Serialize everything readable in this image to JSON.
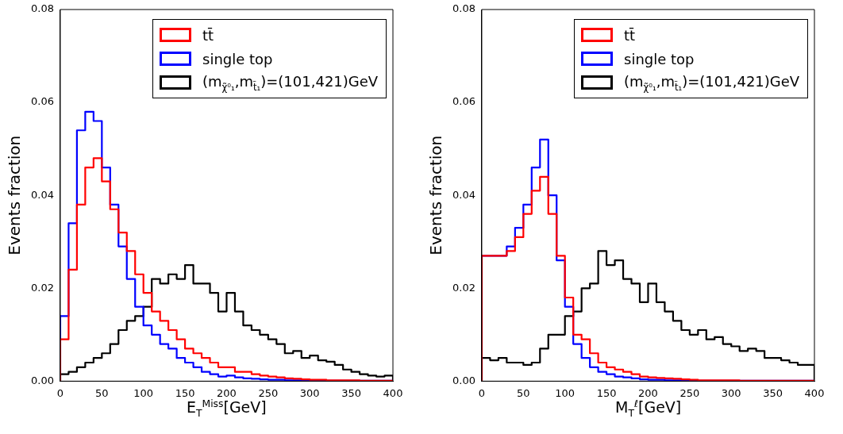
{
  "chart_data": [
    {
      "type": "histogram",
      "xlabel": "E$_{T}$$^{Miss}$[GeV]",
      "ylabel": "Events fraction",
      "bins": [
        0,
        10,
        20,
        30,
        40,
        50,
        60,
        70,
        80,
        90,
        100,
        110,
        120,
        130,
        140,
        150,
        160,
        170,
        180,
        190,
        200,
        210,
        220,
        230,
        240,
        250,
        260,
        270,
        280,
        290,
        300,
        310,
        320,
        330,
        340,
        350,
        360,
        370,
        380,
        390,
        400
      ],
      "series": [
        {
          "name": "tt̄",
          "color": "#ff0000",
          "values": [
            0.009,
            0.024,
            0.038,
            0.046,
            0.048,
            0.043,
            0.037,
            0.032,
            0.028,
            0.023,
            0.019,
            0.015,
            0.013,
            0.011,
            0.009,
            0.007,
            0.006,
            0.005,
            0.004,
            0.003,
            0.003,
            0.002,
            0.002,
            0.0015,
            0.0012,
            0.001,
            0.0008,
            0.0006,
            0.0005,
            0.0004,
            0.0003,
            0.0003,
            0.0002,
            0.0002,
            0.0002,
            0.0002,
            0.0001,
            0.0001,
            0.0001,
            0.0001
          ]
        },
        {
          "name": "single top",
          "color": "#0000ff",
          "values": [
            0.014,
            0.034,
            0.054,
            0.058,
            0.056,
            0.046,
            0.038,
            0.029,
            0.022,
            0.016,
            0.012,
            0.01,
            0.008,
            0.007,
            0.005,
            0.004,
            0.003,
            0.002,
            0.0015,
            0.001,
            0.0012,
            0.0008,
            0.0006,
            0.0005,
            0.0004,
            0.0003,
            0.0003,
            0.0002,
            0.0002,
            0.0002,
            0.0001,
            0.0001,
            0.0001,
            0.0001,
            0.0001,
            0.0001,
            0.0001,
            0.0001,
            0.0001,
            0.0001
          ]
        },
        {
          "name": "(m$_{χ̃⁰₁}$,m$_{t̃₁}$)=(101,421)GeV",
          "color": "#000000",
          "values": [
            0.0015,
            0.002,
            0.003,
            0.004,
            0.005,
            0.006,
            0.008,
            0.011,
            0.013,
            0.014,
            0.016,
            0.022,
            0.021,
            0.023,
            0.022,
            0.025,
            0.021,
            0.021,
            0.019,
            0.015,
            0.019,
            0.015,
            0.012,
            0.011,
            0.01,
            0.009,
            0.008,
            0.006,
            0.0065,
            0.005,
            0.0055,
            0.0045,
            0.0042,
            0.0035,
            0.0025,
            0.002,
            0.0015,
            0.0012,
            0.001,
            0.0012
          ]
        }
      ],
      "xlim": [
        0,
        400
      ],
      "xticks": [
        0,
        50,
        100,
        150,
        200,
        250,
        300,
        350,
        400
      ],
      "ylim": [
        0,
        0.08
      ],
      "yticks": [
        {
          "value": 0,
          "label": "0.00"
        },
        {
          "value": 0.02,
          "label": "0.02"
        },
        {
          "value": 0.04,
          "label": "0.04"
        },
        {
          "value": 0.06,
          "label": "0.06"
        },
        {
          "value": 0.08,
          "label": "0.08"
        }
      ],
      "grid": false,
      "legend": "top right",
      "marker": "none",
      "line_style": "solid"
    },
    {
      "type": "histogram",
      "xlabel": "M$_{T}$$^{ℓ}$[GeV]",
      "ylabel": "Events fraction",
      "bins": [
        0,
        10,
        20,
        30,
        40,
        50,
        60,
        70,
        80,
        90,
        100,
        110,
        120,
        130,
        140,
        150,
        160,
        170,
        180,
        190,
        200,
        210,
        220,
        230,
        240,
        250,
        260,
        270,
        280,
        290,
        300,
        310,
        320,
        330,
        340,
        350,
        360,
        370,
        380,
        390,
        400
      ],
      "series": [
        {
          "name": "tt̄",
          "color": "#ff0000",
          "values": [
            0.027,
            0.027,
            0.027,
            0.028,
            0.031,
            0.036,
            0.041,
            0.044,
            0.036,
            0.027,
            0.018,
            0.01,
            0.009,
            0.006,
            0.004,
            0.003,
            0.0025,
            0.002,
            0.0015,
            0.001,
            0.0008,
            0.0007,
            0.0006,
            0.0005,
            0.0004,
            0.0003,
            0.0002,
            0.0002,
            0.0002,
            0.0002,
            0.0002,
            0.0001,
            0.0001,
            0.0001,
            0.0001,
            0.0001,
            0.0001,
            0.0001,
            0.0001,
            0.0001
          ]
        },
        {
          "name": "single top",
          "color": "#0000ff",
          "values": [
            0.027,
            0.027,
            0.027,
            0.029,
            0.033,
            0.038,
            0.046,
            0.052,
            0.04,
            0.026,
            0.016,
            0.008,
            0.005,
            0.003,
            0.002,
            0.0015,
            0.001,
            0.0008,
            0.0006,
            0.0004,
            0.0003,
            0.0003,
            0.0002,
            0.0002,
            0.0002,
            0.0001,
            0.0001,
            0.0001,
            0.0001,
            0.0001,
            0.0001,
            0.0001,
            0.0001,
            0.0001,
            0.0001,
            0.0001,
            0.0001,
            0.0001,
            0.0001,
            0.0001
          ]
        },
        {
          "name": "(m$_{χ̃⁰₁}$,m$_{t̃₁}$)=(101,421)GeV",
          "color": "#000000",
          "values": [
            0.005,
            0.0045,
            0.005,
            0.004,
            0.004,
            0.0035,
            0.004,
            0.007,
            0.01,
            0.01,
            0.014,
            0.015,
            0.02,
            0.021,
            0.028,
            0.025,
            0.026,
            0.022,
            0.021,
            0.017,
            0.021,
            0.017,
            0.015,
            0.013,
            0.011,
            0.01,
            0.011,
            0.009,
            0.0095,
            0.008,
            0.0075,
            0.0065,
            0.007,
            0.0065,
            0.005,
            0.005,
            0.0045,
            0.004,
            0.0035,
            0.0035
          ]
        }
      ],
      "xlim": [
        0,
        400
      ],
      "xticks": [
        0,
        50,
        100,
        150,
        200,
        250,
        300,
        350,
        400
      ],
      "ylim": [
        0,
        0.08
      ],
      "yticks": [
        {
          "value": 0,
          "label": "0.00"
        },
        {
          "value": 0.02,
          "label": "0.02"
        },
        {
          "value": 0.04,
          "label": "0.04"
        },
        {
          "value": 0.06,
          "label": "0.06"
        },
        {
          "value": 0.08,
          "label": "0.08"
        }
      ],
      "grid": false,
      "legend": "top right",
      "marker": "none",
      "line_style": "solid"
    }
  ]
}
